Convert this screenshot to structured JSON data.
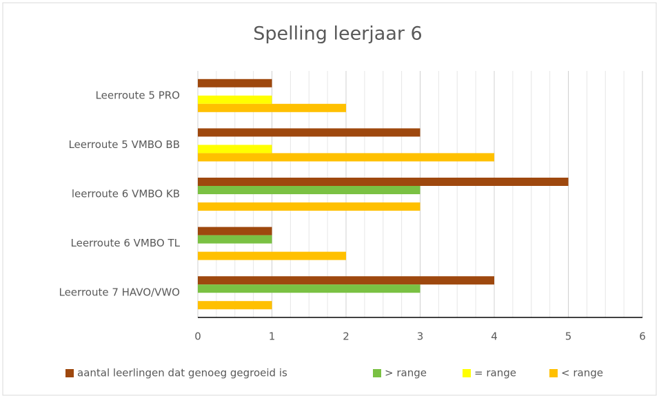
{
  "chart_data": {
    "type": "hbar",
    "title": "Spelling leerjaar 6",
    "categories": [
      "Leerroute 5 PRO",
      "Leerroute 5 VMBO BB",
      "leerroute 6 VMBO KB",
      "Leerroute 6 VMBO TL",
      "Leerroute 7 HAVO/VWO"
    ],
    "series": [
      {
        "name": "aantal leerlingen dat genoeg gegroeid is",
        "color": "#9e480e",
        "values": [
          1,
          3,
          5,
          1,
          4
        ]
      },
      {
        "name": "> range",
        "color": "#7ac143",
        "values": [
          0,
          0,
          3,
          1,
          3
        ]
      },
      {
        "name": "= range",
        "color": "#ffff00",
        "values": [
          1,
          1,
          0,
          0,
          0
        ]
      },
      {
        "name": "< range",
        "color": "#ffc000",
        "values": [
          2,
          4,
          3,
          2,
          1
        ]
      }
    ],
    "xlim": [
      0,
      6
    ],
    "xticks": [
      0,
      1,
      2,
      3,
      4,
      5,
      6
    ],
    "grid": true,
    "minor_grid_divisions": 4,
    "legend": "bottom"
  }
}
